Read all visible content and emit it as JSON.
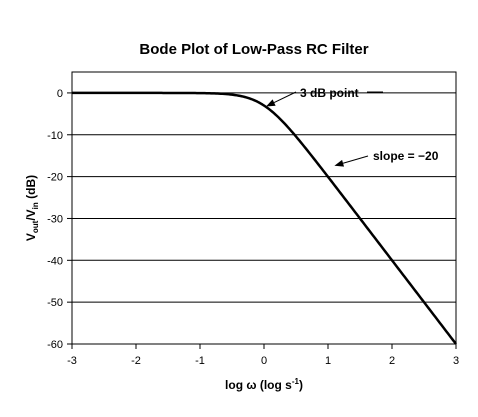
{
  "chart_data": {
    "type": "line",
    "title": "Bode Plot of Low-Pass RC Filter",
    "xlabel": {
      "main": "log ω (log s",
      "sup": "-1",
      "close": ")"
    },
    "ylabel": {
      "v1": "V",
      "sub1": "out",
      "slash": "/V",
      "sub2": "in",
      "unit": " (dB)"
    },
    "xlim": [
      -3,
      3
    ],
    "ylim": [
      -60,
      5
    ],
    "xticks": [
      -3,
      -2,
      -1,
      0,
      1,
      2,
      3
    ],
    "yticks": [
      0,
      -10,
      -20,
      -30,
      -40,
      -50,
      -60
    ],
    "xtick_labels": [
      "-3",
      "-2",
      "-1",
      "0",
      "1",
      "2",
      "3"
    ],
    "ytick_labels": [
      "0",
      "-10",
      "-20",
      "-30",
      "-40",
      "-50",
      "-60"
    ],
    "grid": "horizontal",
    "legend": "none",
    "series": [
      {
        "model": "gain_db = -10*log10(1 + 10^(2x))",
        "x_range": [
          -3,
          3
        ],
        "color": "#000000"
      }
    ],
    "annotations": [
      {
        "text": "3 dB point",
        "x": 0,
        "y": -3
      },
      {
        "text": "slope = −20",
        "x": 1.1,
        "y": -17.4
      }
    ],
    "colors": {
      "line": "#000000",
      "grid": "#000000",
      "background": "#ffffff"
    }
  }
}
